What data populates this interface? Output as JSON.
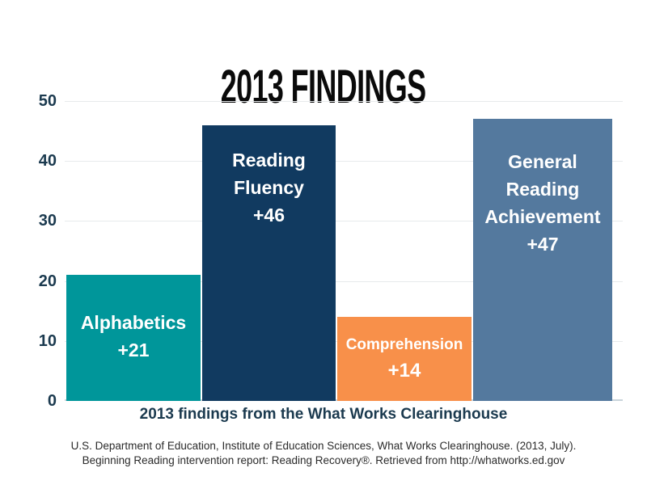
{
  "title": "2013 FINDINGS",
  "caption": "2013 findings from the What Works Clearinghouse",
  "footer": {
    "line1": "U.S. Department of Education, Institute of Education Sciences, What Works Clearinghouse. (2013, July).",
    "line2": "Beginning Reading intervention report: Reading Recovery®. Retrieved from http://whatworks.ed.gov"
  },
  "colors": {
    "background": "#FFFFFF",
    "title_text": "#0A0A0A",
    "axis_text": "#1B3A4F",
    "gridline": "#E7EAEC",
    "baseline": "#C9D4DB",
    "bar_label_text": "#FFFFFF",
    "footer_text": "#2B2B2B"
  },
  "chart_data": {
    "type": "bar",
    "title": "2013 FINDINGS",
    "xlabel": "2013 findings from the What Works Clearinghouse",
    "ylabel": "",
    "ylim": [
      0,
      50
    ],
    "yticks": [
      0,
      10,
      20,
      30,
      40,
      50
    ],
    "ytick_display": [
      "50",
      "40",
      "30",
      "20",
      "10",
      "0"
    ],
    "grid": true,
    "legend": "none",
    "categories": [
      "Alphabetics",
      "Reading Fluency",
      "Comprehension",
      "General Reading Achievement"
    ],
    "values": [
      21,
      46,
      14,
      47
    ],
    "bars": [
      {
        "category": "Alphabetics",
        "value": 21,
        "color": "#00969A",
        "label_lines": [
          "Alphabetics",
          "+21"
        ]
      },
      {
        "category": "Reading Fluency",
        "value": 46,
        "color": "#113A60",
        "label_lines": [
          "Reading",
          "Fluency",
          "+46"
        ]
      },
      {
        "category": "Comprehension",
        "value": 14,
        "color": "#F8904A",
        "label_lines": [
          "Comprehension",
          "+14"
        ]
      },
      {
        "category": "General Reading Achievement",
        "value": 47,
        "color": "#54799E",
        "label_lines": [
          "General",
          "Reading",
          "Achievement",
          "+47"
        ]
      }
    ]
  }
}
